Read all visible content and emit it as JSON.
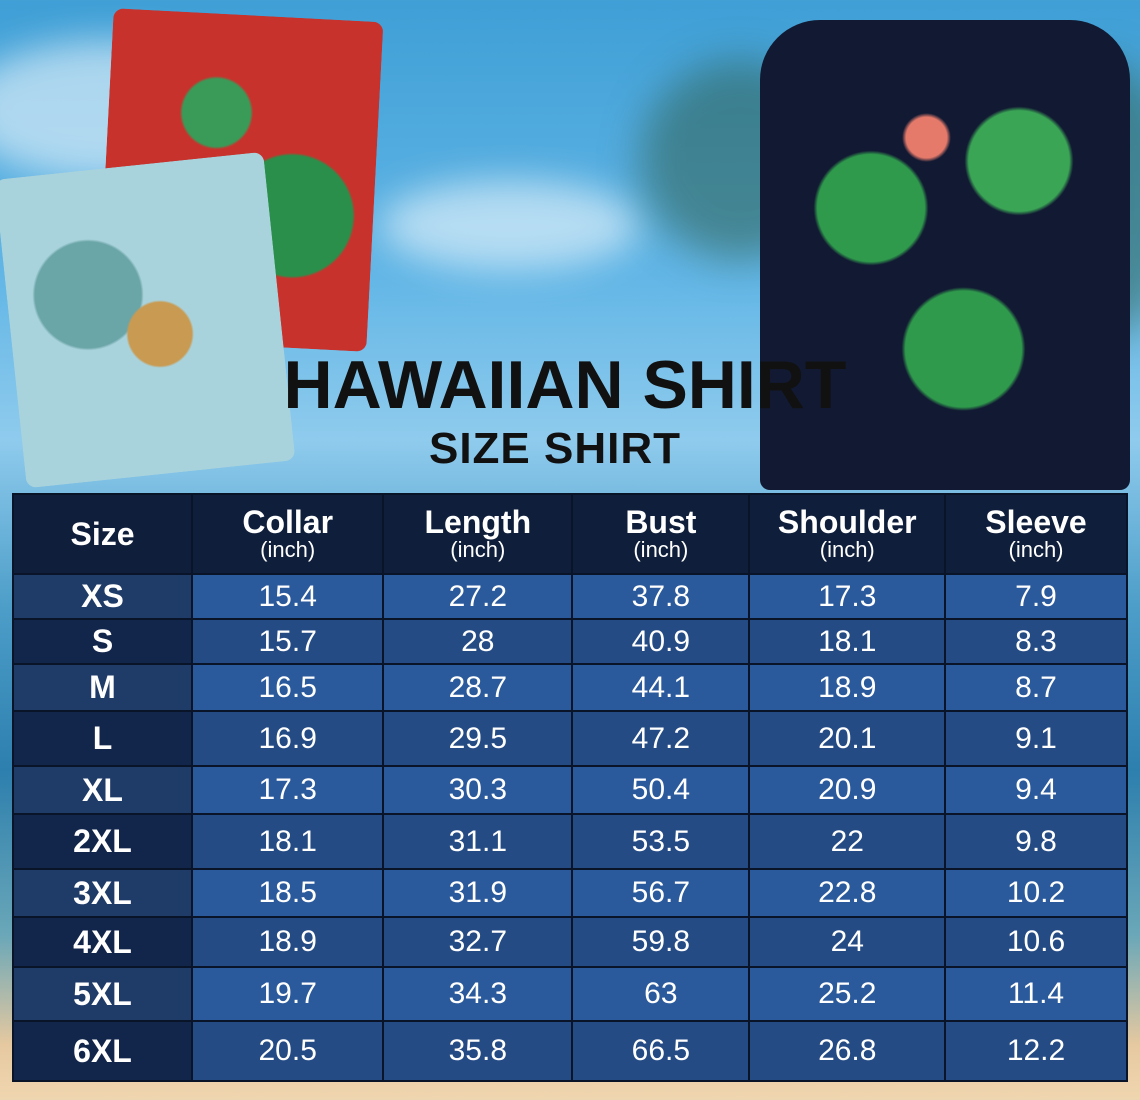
{
  "title": "HAWAIIAN SHIRT",
  "subtitle": "SIZE SHIRT",
  "table": {
    "headers": [
      {
        "label": "Size",
        "unit": ""
      },
      {
        "label": "Collar",
        "unit": "(inch)"
      },
      {
        "label": "Length",
        "unit": "(inch)"
      },
      {
        "label": "Bust",
        "unit": "(inch)"
      },
      {
        "label": "Shoulder",
        "unit": "(inch)"
      },
      {
        "label": "Sleeve",
        "unit": "(inch)"
      }
    ],
    "rows": [
      [
        "XS",
        "15.4",
        "27.2",
        "37.8",
        "17.3",
        "7.9"
      ],
      [
        "S",
        "15.7",
        "28",
        "40.9",
        "18.1",
        "8.3"
      ],
      [
        "M",
        "16.5",
        "28.7",
        "44.1",
        "18.9",
        "8.7"
      ],
      [
        "L",
        "16.9",
        "29.5",
        "47.2",
        "20.1",
        "9.1"
      ],
      [
        "XL",
        "17.3",
        "30.3",
        "50.4",
        "20.9",
        "9.4"
      ],
      [
        "2XL",
        "18.1",
        "31.1",
        "53.5",
        "22",
        "9.8"
      ],
      [
        "3XL",
        "18.5",
        "31.9",
        "56.7",
        "22.8",
        "10.2"
      ],
      [
        "4XL",
        "18.9",
        "32.7",
        "59.8",
        "24",
        "10.6"
      ],
      [
        "5XL",
        "19.7",
        "34.3",
        "63",
        "25.2",
        "11.4"
      ],
      [
        "6XL",
        "20.5",
        "35.8",
        "66.5",
        "26.8",
        "12.2"
      ]
    ]
  },
  "colors": {
    "header": "#0f1e3a",
    "cell_light": "#2b5a9c",
    "cell_dark": "#254b85"
  }
}
